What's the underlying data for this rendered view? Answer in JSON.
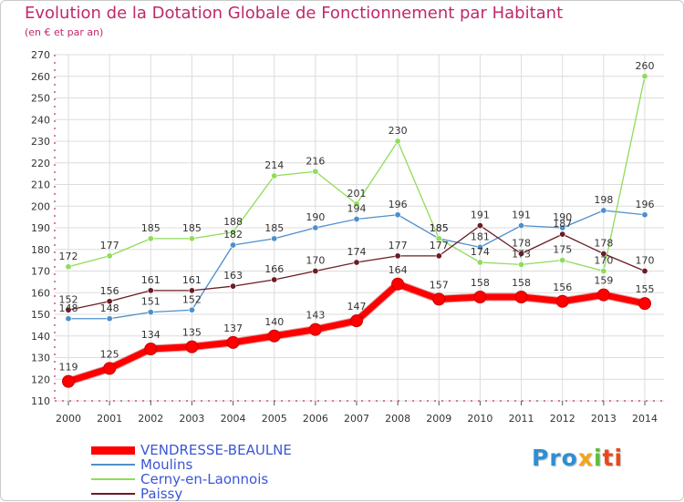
{
  "header": {
    "title": "Evolution de la Dotation Globale de Fonctionnement par Habitant",
    "subtitle": "(en € et par an)"
  },
  "logo": {
    "p1": "Pro",
    "p2": "x",
    "p3": "i",
    "p4": "ti"
  },
  "colors": {
    "title": "#c0286b",
    "axis": "#c0286b",
    "grid": "#dcdcdc",
    "legend_text": "#3a56d6"
  },
  "chart_data": {
    "type": "line",
    "title": "Evolution de la Dotation Globale de Fonctionnement par Habitant",
    "subtitle": "(en € et par an)",
    "xlabel": "",
    "ylabel": "",
    "x": [
      2000,
      2001,
      2002,
      2003,
      2004,
      2005,
      2006,
      2007,
      2008,
      2009,
      2010,
      2011,
      2012,
      2013,
      2014
    ],
    "ylim": [
      110,
      270
    ],
    "yticks": [
      110,
      120,
      130,
      140,
      150,
      160,
      170,
      180,
      190,
      200,
      210,
      220,
      230,
      240,
      250,
      260,
      270
    ],
    "grid": true,
    "legend_position": "bottom-left",
    "series": [
      {
        "name": "VENDRESSE-BEAULNE",
        "color": "#ff0000",
        "width": 7,
        "values": [
          119,
          125,
          134,
          135,
          137,
          140,
          143,
          147,
          164,
          157,
          158,
          158,
          156,
          159,
          155
        ]
      },
      {
        "name": "Moulins",
        "color": "#4d8fcc",
        "width": 1.3,
        "values": [
          148,
          148,
          151,
          152,
          182,
          185,
          190,
          194,
          196,
          185,
          181,
          191,
          190,
          198,
          196
        ]
      },
      {
        "name": "Cerny-en-Laonnois",
        "color": "#8fdc5a",
        "width": 1.3,
        "values": [
          172,
          177,
          185,
          185,
          188,
          214,
          216,
          201,
          230,
          185,
          174,
          173,
          175,
          170,
          260
        ]
      },
      {
        "name": "Paissy",
        "color": "#6b1c24",
        "width": 1.3,
        "values": [
          152,
          156,
          161,
          161,
          163,
          166,
          170,
          174,
          177,
          177,
          191,
          178,
          187,
          178,
          170
        ]
      }
    ]
  }
}
